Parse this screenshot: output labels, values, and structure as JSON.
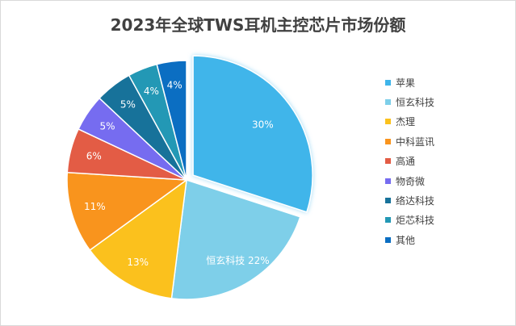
{
  "chart_data": {
    "type": "pie",
    "title": "2023年全球TWS耳机主控芯片市场份额",
    "unit": "%",
    "legend_position": "right",
    "slices": [
      {
        "label": "苹果",
        "value": 30,
        "color": "#3fb5ea",
        "exploded": true
      },
      {
        "label": "恒玄科技",
        "value": 22,
        "color": "#7ecfe9"
      },
      {
        "label": "杰理",
        "value": 13,
        "color": "#fbc11d"
      },
      {
        "label": "中科蓝讯",
        "value": 11,
        "color": "#f9941d"
      },
      {
        "label": "高通",
        "value": 6,
        "color": "#e35c45"
      },
      {
        "label": "物奇微",
        "value": 5,
        "color": "#766cf0"
      },
      {
        "label": "络达科技",
        "value": 5,
        "color": "#17729a"
      },
      {
        "label": "炬芯科技",
        "value": 4,
        "color": "#2398b5"
      },
      {
        "label": "其他",
        "value": 4,
        "color": "#0b6ec2"
      }
    ],
    "data_labels": [
      "30%",
      "恒玄科技 22%",
      "13%",
      "11%",
      "6%",
      "5%",
      "5%",
      "4%",
      "4%"
    ]
  }
}
